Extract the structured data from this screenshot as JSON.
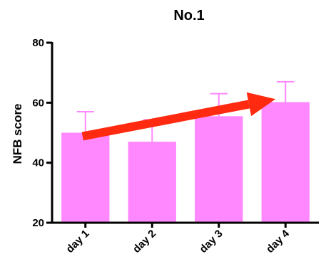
{
  "chart_data": {
    "type": "bar",
    "title": "No.1",
    "xlabel": "",
    "ylabel": "NFB score",
    "categories": [
      "day 1",
      "day 2",
      "day 3",
      "day 4"
    ],
    "values": [
      50,
      47,
      55.5,
      60.2
    ],
    "error_upper": [
      57,
      54.3,
      63,
      67
    ],
    "ylim": [
      20,
      80
    ],
    "yticks": [
      20,
      40,
      60,
      80
    ],
    "ytick_labels": [
      "20",
      "40",
      "60",
      "80"
    ],
    "grid": false,
    "bar_color": "#ff88ff",
    "errorbar_color": "#ff88ff",
    "trend_arrow": {
      "from_category": "day 1",
      "from_value": 50,
      "to_category": "day 4",
      "to_value": 60.5,
      "color": "#ff2a10"
    }
  }
}
